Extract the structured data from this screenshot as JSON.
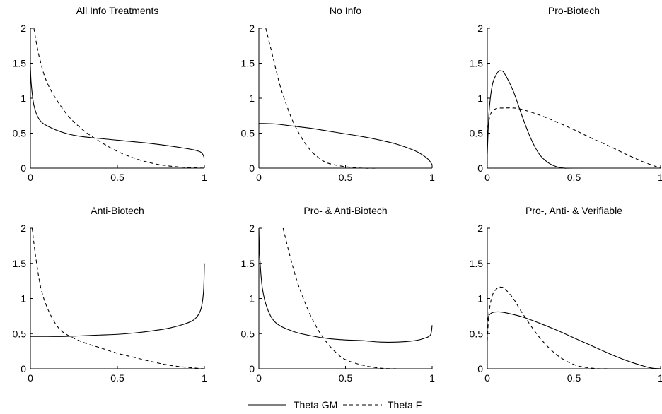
{
  "legend": {
    "items": [
      {
        "label": "Theta GM",
        "style": "solid"
      },
      {
        "label": "Theta F",
        "style": "dashed"
      }
    ],
    "position": "bottom-center"
  },
  "colors": {
    "line": "#000000",
    "background": "#ffffff"
  },
  "chart_data": [
    {
      "type": "line",
      "title": "All Info Treatments",
      "xlim": [
        0,
        1
      ],
      "ylim": [
        0,
        2
      ],
      "xticks": [
        "0",
        "0.5",
        "1"
      ],
      "yticks": [
        "0",
        "0.5",
        "1",
        "1.5",
        "2"
      ],
      "series": [
        {
          "name": "Theta GM",
          "style": "solid",
          "x": [
            0,
            0.005,
            0.02,
            0.05,
            0.1,
            0.2,
            0.3,
            0.5,
            0.7,
            0.9,
            0.97,
            0.99,
            1.0
          ],
          "y": [
            1.45,
            1.2,
            0.9,
            0.7,
            0.6,
            0.5,
            0.45,
            0.4,
            0.35,
            0.28,
            0.24,
            0.2,
            0.14
          ]
        },
        {
          "name": "Theta F",
          "style": "dashed",
          "x": [
            0.02,
            0.05,
            0.1,
            0.2,
            0.3,
            0.4,
            0.5,
            0.6,
            0.7,
            0.8,
            0.9,
            1.0
          ],
          "y": [
            2.0,
            1.6,
            1.2,
            0.8,
            0.55,
            0.38,
            0.24,
            0.14,
            0.07,
            0.03,
            0.01,
            0.0
          ]
        }
      ]
    },
    {
      "type": "line",
      "title": "No Info",
      "xlim": [
        0,
        1
      ],
      "ylim": [
        0,
        2
      ],
      "xticks": [
        "0",
        "0.5",
        "1"
      ],
      "yticks": [
        "0",
        "0.5",
        "1",
        "1.5",
        "2"
      ],
      "series": [
        {
          "name": "Theta GM",
          "style": "solid",
          "x": [
            0,
            0.1,
            0.2,
            0.3,
            0.4,
            0.5,
            0.6,
            0.7,
            0.8,
            0.9,
            0.95,
            0.98,
            1.0
          ],
          "y": [
            0.64,
            0.63,
            0.6,
            0.57,
            0.53,
            0.49,
            0.45,
            0.4,
            0.34,
            0.25,
            0.18,
            0.12,
            0.05
          ]
        },
        {
          "name": "Theta F",
          "style": "dashed",
          "x": [
            0.04,
            0.08,
            0.12,
            0.16,
            0.2,
            0.25,
            0.3,
            0.35,
            0.4,
            0.5,
            0.6,
            0.7,
            1.0
          ],
          "y": [
            2.0,
            1.6,
            1.2,
            0.9,
            0.65,
            0.42,
            0.25,
            0.14,
            0.07,
            0.02,
            0.0,
            0.0,
            0.0
          ]
        }
      ]
    },
    {
      "type": "line",
      "title": "Pro-Biotech",
      "xlim": [
        0,
        1
      ],
      "ylim": [
        0,
        2
      ],
      "xticks": [
        "0",
        "0.5",
        "1"
      ],
      "yticks": [
        "0",
        "0.5",
        "1",
        "1.5",
        "2"
      ],
      "series": [
        {
          "name": "Theta GM",
          "style": "solid",
          "x": [
            0,
            0.01,
            0.03,
            0.06,
            0.08,
            0.1,
            0.15,
            0.2,
            0.25,
            0.3,
            0.35,
            0.4,
            0.45,
            0.5,
            1.0
          ],
          "y": [
            0.2,
            0.8,
            1.2,
            1.37,
            1.39,
            1.35,
            1.1,
            0.75,
            0.43,
            0.2,
            0.08,
            0.02,
            0.0,
            0.0,
            0.0
          ]
        },
        {
          "name": "Theta F",
          "style": "dashed",
          "x": [
            0,
            0.005,
            0.02,
            0.05,
            0.1,
            0.15,
            0.2,
            0.3,
            0.4,
            0.5,
            0.6,
            0.7,
            0.8,
            0.9,
            1.0
          ],
          "y": [
            0.4,
            0.6,
            0.78,
            0.85,
            0.86,
            0.86,
            0.84,
            0.76,
            0.66,
            0.55,
            0.43,
            0.32,
            0.2,
            0.09,
            0.0
          ]
        }
      ]
    },
    {
      "type": "line",
      "title": "Anti-Biotech",
      "xlim": [
        0,
        1
      ],
      "ylim": [
        0,
        2
      ],
      "xticks": [
        "0",
        "0.5",
        "1"
      ],
      "yticks": [
        "0",
        "0.5",
        "1",
        "1.5",
        "2"
      ],
      "series": [
        {
          "name": "Theta GM",
          "style": "solid",
          "x": [
            0,
            0.1,
            0.2,
            0.3,
            0.4,
            0.5,
            0.6,
            0.7,
            0.8,
            0.9,
            0.95,
            0.98,
            0.995,
            1.0
          ],
          "y": [
            0.46,
            0.46,
            0.46,
            0.47,
            0.48,
            0.49,
            0.51,
            0.54,
            0.58,
            0.65,
            0.72,
            0.85,
            1.1,
            1.5
          ]
        },
        {
          "name": "Theta F",
          "style": "dashed",
          "x": [
            0.01,
            0.03,
            0.06,
            0.1,
            0.15,
            0.2,
            0.3,
            0.4,
            0.5,
            0.6,
            0.7,
            0.8,
            0.9,
            1.0
          ],
          "y": [
            2.0,
            1.6,
            1.15,
            0.85,
            0.62,
            0.5,
            0.38,
            0.3,
            0.22,
            0.16,
            0.1,
            0.05,
            0.02,
            0.0
          ]
        }
      ]
    },
    {
      "type": "line",
      "title": "Pro- & Anti-Biotech",
      "xlim": [
        0,
        1
      ],
      "ylim": [
        0,
        2
      ],
      "xticks": [
        "0",
        "0.5",
        "1"
      ],
      "yticks": [
        "0",
        "0.5",
        "1",
        "1.5",
        "2"
      ],
      "series": [
        {
          "name": "Theta GM",
          "style": "solid",
          "x": [
            0,
            0.005,
            0.02,
            0.05,
            0.1,
            0.2,
            0.3,
            0.4,
            0.5,
            0.6,
            0.7,
            0.8,
            0.9,
            0.95,
            0.99,
            1.0
          ],
          "y": [
            2.0,
            1.6,
            1.15,
            0.85,
            0.65,
            0.53,
            0.47,
            0.43,
            0.41,
            0.4,
            0.38,
            0.38,
            0.4,
            0.43,
            0.48,
            0.62
          ]
        },
        {
          "name": "Theta F",
          "style": "dashed",
          "x": [
            0.14,
            0.18,
            0.22,
            0.26,
            0.3,
            0.35,
            0.4,
            0.45,
            0.5,
            0.6,
            0.7,
            0.8,
            1.0
          ],
          "y": [
            2.0,
            1.6,
            1.25,
            0.98,
            0.75,
            0.52,
            0.35,
            0.22,
            0.13,
            0.05,
            0.01,
            0.0,
            0.0
          ]
        }
      ]
    },
    {
      "type": "line",
      "title": "Pro-, Anti- & Verifiable",
      "xlim": [
        0,
        1
      ],
      "ylim": [
        0,
        2
      ],
      "xticks": [
        "0",
        "0.5",
        "1"
      ],
      "yticks": [
        "0",
        "0.5",
        "1",
        "1.5",
        "2"
      ],
      "series": [
        {
          "name": "Theta GM",
          "style": "solid",
          "x": [
            0,
            0.01,
            0.03,
            0.06,
            0.1,
            0.2,
            0.3,
            0.4,
            0.5,
            0.6,
            0.7,
            0.8,
            0.9,
            0.95,
            1.0
          ],
          "y": [
            0.68,
            0.76,
            0.8,
            0.81,
            0.8,
            0.74,
            0.65,
            0.55,
            0.44,
            0.33,
            0.22,
            0.12,
            0.04,
            0.01,
            0.0
          ]
        },
        {
          "name": "Theta F",
          "style": "dashed",
          "x": [
            0,
            0.01,
            0.03,
            0.06,
            0.08,
            0.1,
            0.15,
            0.2,
            0.3,
            0.4,
            0.5,
            0.6,
            0.7,
            1.0
          ],
          "y": [
            0.4,
            0.8,
            1.05,
            1.15,
            1.16,
            1.14,
            1.0,
            0.8,
            0.45,
            0.2,
            0.06,
            0.01,
            0.0,
            0.0
          ]
        }
      ]
    }
  ]
}
